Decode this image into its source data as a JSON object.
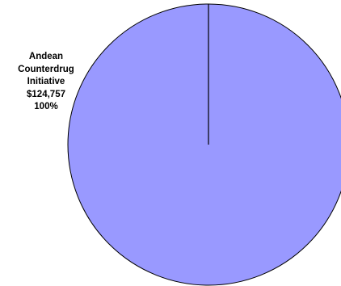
{
  "chart_data": {
    "type": "pie",
    "title": "",
    "slices": [
      {
        "label_lines": [
          "Andean",
          "Counterdrug",
          "Initiative"
        ],
        "amount": "$124,757",
        "value": 124757,
        "percent": "100%",
        "color": "#9999ff"
      }
    ],
    "legend": "none"
  }
}
